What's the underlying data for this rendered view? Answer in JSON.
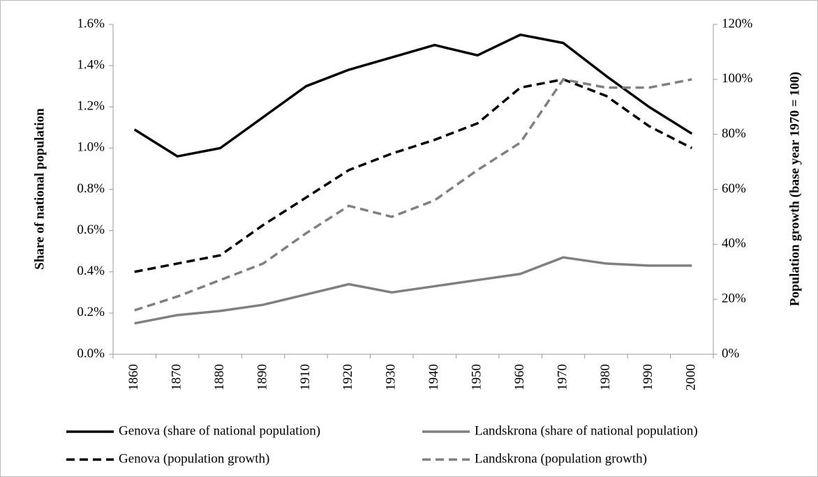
{
  "chart_data": {
    "type": "line",
    "y_label": "Share of national population",
    "y2_label": "Population growth (base year 1970 = 100)",
    "categories": [
      "1860",
      "1870",
      "1880",
      "1890",
      "1910",
      "1920",
      "1930",
      "1940",
      "1950",
      "1960",
      "1970",
      "1980",
      "1990",
      "2000"
    ],
    "ylim": [
      0,
      1.6
    ],
    "yticks": [
      {
        "value": 0,
        "label": "0.0%"
      },
      {
        "value": 0.2,
        "label": "0.2%"
      },
      {
        "value": 0.4,
        "label": "0.4%"
      },
      {
        "value": 0.6,
        "label": "0.6%"
      },
      {
        "value": 0.8,
        "label": "0.8%"
      },
      {
        "value": 1.0,
        "label": "1.0%"
      },
      {
        "value": 1.2,
        "label": "1.2%"
      },
      {
        "value": 1.4,
        "label": "1.4%"
      },
      {
        "value": 1.6,
        "label": "1.6%"
      }
    ],
    "y2lim": [
      0,
      120
    ],
    "y2ticks": [
      {
        "value": 0,
        "label": "0%"
      },
      {
        "value": 20,
        "label": "20%"
      },
      {
        "value": 40,
        "label": "40%"
      },
      {
        "value": 60,
        "label": "60%"
      },
      {
        "value": 80,
        "label": "80%"
      },
      {
        "value": 100,
        "label": "100%"
      },
      {
        "value": 120,
        "label": "120%"
      }
    ],
    "series": [
      {
        "name": "Genova (share of national population)",
        "color": "#000000",
        "dashed": false,
        "values": [
          1.09,
          0.96,
          1.0,
          1.15,
          1.3,
          1.38,
          1.44,
          1.5,
          1.45,
          1.55,
          1.51,
          1.35,
          1.2,
          1.07
        ]
      },
      {
        "name": "Landskrona (share of national population)",
        "color": "#808080",
        "dashed": false,
        "values": [
          0.15,
          0.19,
          0.21,
          0.24,
          0.29,
          0.34,
          0.3,
          0.33,
          0.36,
          0.39,
          0.47,
          0.44,
          0.43,
          0.43
        ]
      },
      {
        "name": "Genova (population growth)",
        "color": "#000000",
        "dashed": true,
        "axis": "y2",
        "values": [
          30,
          33,
          36,
          47,
          57,
          67,
          73,
          78,
          84,
          97,
          100,
          94,
          83,
          75
        ]
      },
      {
        "name": "Landskrona (population growth)",
        "color": "#808080",
        "dashed": true,
        "axis": "y2",
        "values": [
          16,
          21,
          27,
          33,
          44,
          54,
          50,
          56,
          67,
          77,
          100,
          97,
          97,
          100
        ]
      }
    ]
  }
}
